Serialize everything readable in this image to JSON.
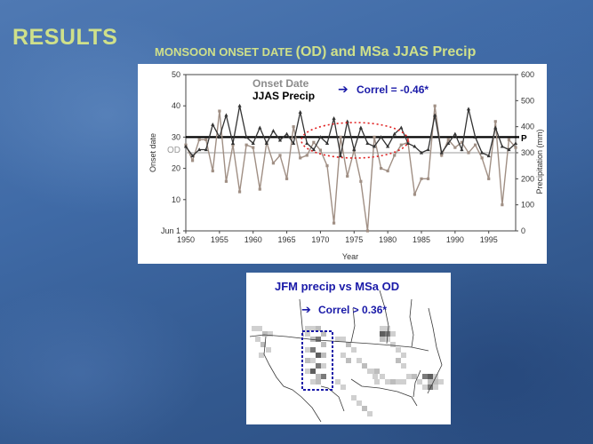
{
  "slide": {
    "title": "RESULTS",
    "heading_small": "MONSOON ONSET DATE ",
    "heading_large": "(OD) and MSa JJAS Precip"
  },
  "colors": {
    "title": "#cfe08a",
    "onset_series": "#333333",
    "precip_series": "#a08f84",
    "correl_text": "#1a1aa8",
    "highlight_red": "#e02020",
    "highlight_blue": "#1a1aa8"
  },
  "chart_data": [
    {
      "type": "line",
      "title": "",
      "xlabel": "Year",
      "ylabel": "Onset date",
      "ylabel_right": "Precipitation (mm)",
      "xlim": [
        1950,
        1999
      ],
      "ylim": [
        0,
        50
      ],
      "ylim_right": [
        0,
        600
      ],
      "x_ticks": [
        "1950",
        "1955",
        "1960",
        "1965",
        "1970",
        "1975",
        "1980",
        "1985",
        "1990",
        "1995"
      ],
      "y_ticks": [
        "Jun 1",
        "10",
        "20",
        "30",
        "40",
        "50"
      ],
      "y_ticks_right": [
        "0",
        "100",
        "200",
        "300",
        "400",
        "500",
        "600"
      ],
      "legend": [
        "Onset Date",
        "JJAS Precip"
      ],
      "annotation": "Correl = -0.46*",
      "reference_labels": [
        "OD",
        "P"
      ],
      "reference_lines": {
        "onset_mean": 30,
        "precip_mean": 300
      },
      "grid": false,
      "series": [
        {
          "name": "Onset Date",
          "axis": "left",
          "x": [
            1950,
            1951,
            1952,
            1953,
            1954,
            1955,
            1956,
            1957,
            1958,
            1959,
            1960,
            1961,
            1962,
            1963,
            1964,
            1965,
            1966,
            1967,
            1968,
            1969,
            1970,
            1971,
            1972,
            1973,
            1974,
            1975,
            1976,
            1977,
            1978,
            1979,
            1980,
            1981,
            1982,
            1983,
            1984,
            1985,
            1986,
            1987,
            1988,
            1989,
            1990,
            1991,
            1992,
            1993,
            1994,
            1995,
            1996,
            1997,
            1998,
            1999
          ],
          "values": [
            27,
            24,
            26,
            26,
            34,
            30,
            37,
            28,
            40,
            30,
            28,
            33,
            28,
            32,
            29,
            31,
            28,
            38,
            28,
            26,
            30,
            28,
            36,
            24,
            35,
            26,
            33,
            28,
            27,
            30,
            27,
            31,
            33,
            28,
            27,
            25,
            26,
            37,
            25,
            28,
            31,
            26,
            39,
            30,
            25,
            24,
            33,
            27,
            26,
            28
          ]
        },
        {
          "name": "JJAS Precip",
          "axis": "right",
          "x": [
            1950,
            1951,
            1952,
            1953,
            1954,
            1955,
            1956,
            1957,
            1958,
            1959,
            1960,
            1961,
            1962,
            1963,
            1964,
            1965,
            1966,
            1967,
            1968,
            1969,
            1970,
            1971,
            1972,
            1973,
            1974,
            1975,
            1976,
            1977,
            1978,
            1979,
            1980,
            1981,
            1982,
            1983,
            1984,
            1985,
            1986,
            1987,
            1988,
            1989,
            1990,
            1991,
            1992,
            1993,
            1994,
            1995,
            1996,
            1997,
            1998,
            1999
          ],
          "values": [
            330,
            270,
            350,
            350,
            230,
            460,
            190,
            330,
            150,
            330,
            320,
            160,
            340,
            260,
            290,
            200,
            400,
            280,
            290,
            340,
            310,
            250,
            30,
            360,
            210,
            310,
            190,
            0,
            360,
            240,
            230,
            290,
            330,
            340,
            140,
            200,
            200,
            480,
            290,
            350,
            320,
            340,
            300,
            330,
            280,
            200,
            420,
            100,
            350,
            320
          ]
        }
      ]
    },
    {
      "type": "heatmap",
      "title": "JFM precip vs MSa OD",
      "annotation": "Correl > 0.36*",
      "legend": []
    }
  ]
}
